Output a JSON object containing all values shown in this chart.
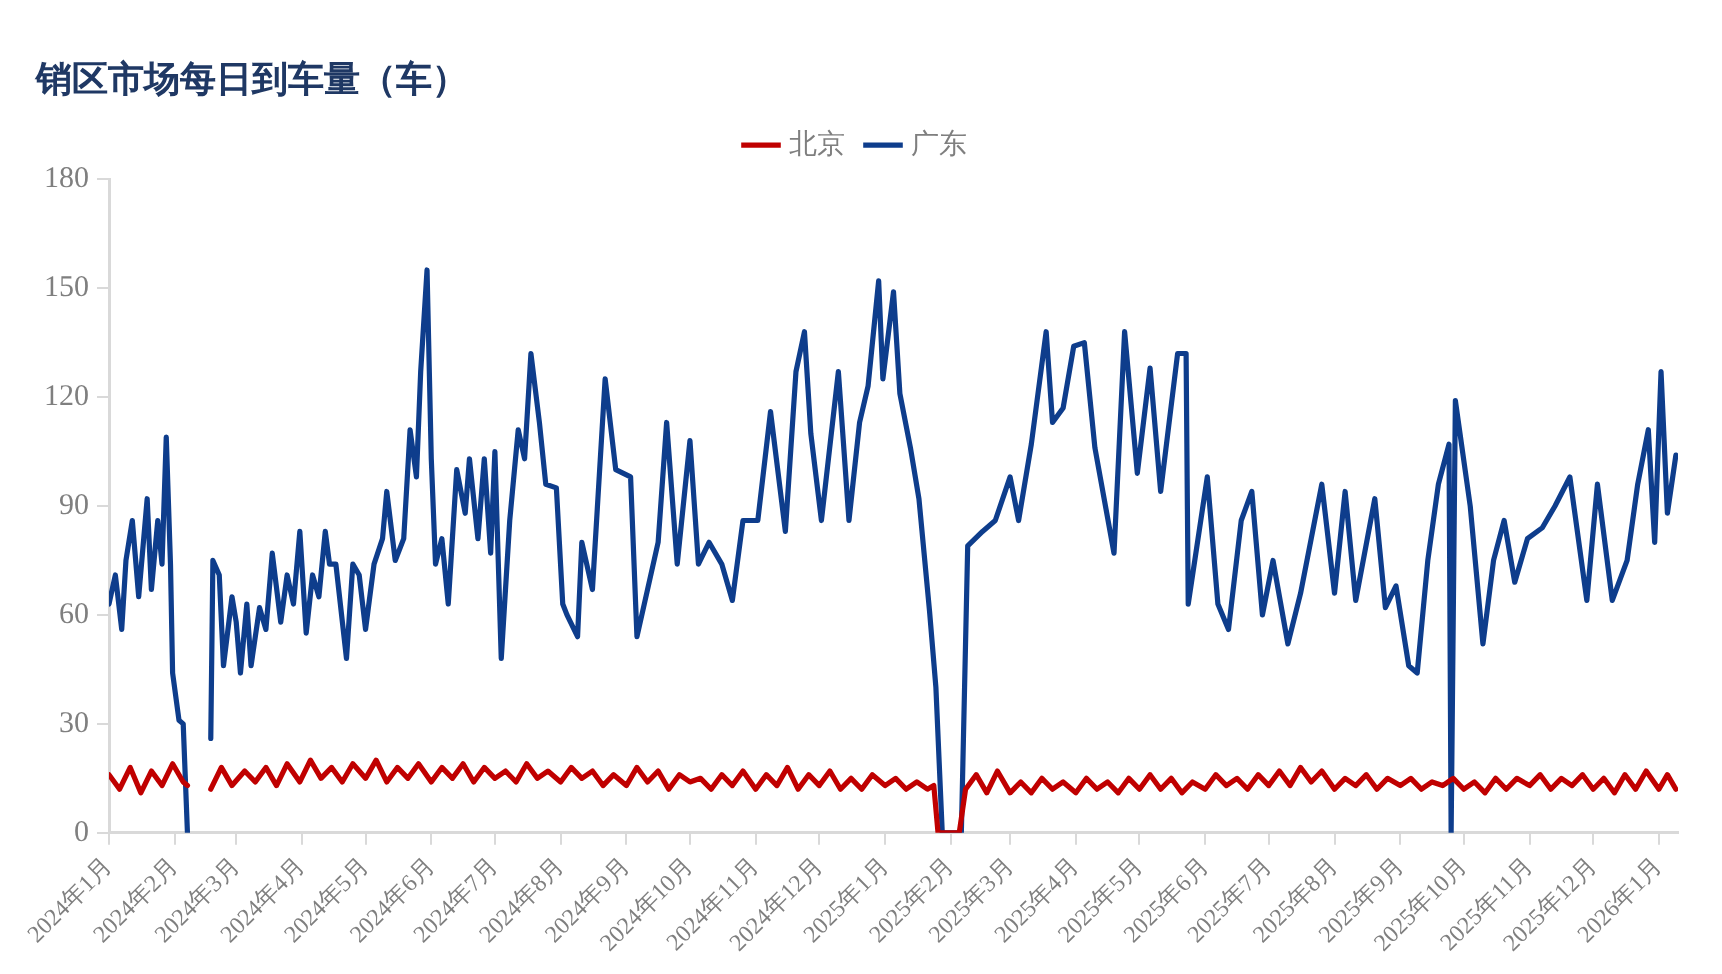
{
  "chart_data": {
    "type": "line",
    "title": "销区市场每日到车量（车）",
    "legend": "top",
    "marker": "none",
    "line_style": "solid",
    "grid": false,
    "xlim": [
      "2024-01-01",
      "2026-01-10"
    ],
    "ylim": [
      0,
      180
    ],
    "yticks": [
      0,
      30,
      60,
      90,
      120,
      150,
      180
    ],
    "xticks": [
      {
        "value": "2024-01-01",
        "label": "2024年1月"
      },
      {
        "value": "2024-02-01",
        "label": "2024年2月"
      },
      {
        "value": "2024-03-01",
        "label": "2024年3月"
      },
      {
        "value": "2024-04-01",
        "label": "2024年4月"
      },
      {
        "value": "2024-05-01",
        "label": "2024年5月"
      },
      {
        "value": "2024-06-01",
        "label": "2024年6月"
      },
      {
        "value": "2024-07-01",
        "label": "2024年7月"
      },
      {
        "value": "2024-08-01",
        "label": "2024年8月"
      },
      {
        "value": "2024-09-01",
        "label": "2024年9月"
      },
      {
        "value": "2024-10-01",
        "label": "2024年10月"
      },
      {
        "value": "2024-11-01",
        "label": "2024年11月"
      },
      {
        "value": "2024-12-01",
        "label": "2024年12月"
      },
      {
        "value": "2025-01-01",
        "label": "2025年1月"
      },
      {
        "value": "2025-02-01",
        "label": "2025年2月"
      },
      {
        "value": "2025-03-01",
        "label": "2025年3月"
      },
      {
        "value": "2025-04-01",
        "label": "2025年4月"
      },
      {
        "value": "2025-05-01",
        "label": "2025年5月"
      },
      {
        "value": "2025-06-01",
        "label": "2025年6月"
      },
      {
        "value": "2025-07-01",
        "label": "2025年7月"
      },
      {
        "value": "2025-08-01",
        "label": "2025年8月"
      },
      {
        "value": "2025-09-01",
        "label": "2025年9月"
      },
      {
        "value": "2025-10-01",
        "label": "2025年10月"
      },
      {
        "value": "2025-11-01",
        "label": "2025年11月"
      },
      {
        "value": "2025-12-01",
        "label": "2025年12月"
      },
      {
        "value": "2026-01-01",
        "label": "2026年1月"
      }
    ],
    "series": [
      {
        "name": "北京",
        "color": "#c00000",
        "x": [
          "2024-01-01",
          "2024-01-06",
          "2024-01-11",
          "2024-01-16",
          "2024-01-21",
          "2024-01-26",
          "2024-01-31",
          "2024-02-05",
          "2024-02-07",
          "2024-02-12",
          "2024-02-18",
          "2024-02-23",
          "2024-02-28",
          "2024-03-05",
          "2024-03-10",
          "2024-03-15",
          "2024-03-20",
          "2024-03-25",
          "2024-03-31",
          "2024-04-05",
          "2024-04-10",
          "2024-04-15",
          "2024-04-20",
          "2024-04-25",
          "2024-05-01",
          "2024-05-06",
          "2024-05-11",
          "2024-05-16",
          "2024-05-21",
          "2024-05-26",
          "2024-06-01",
          "2024-06-06",
          "2024-06-11",
          "2024-06-16",
          "2024-06-21",
          "2024-06-26",
          "2024-07-01",
          "2024-07-06",
          "2024-07-11",
          "2024-07-16",
          "2024-07-21",
          "2024-07-26",
          "2024-08-01",
          "2024-08-06",
          "2024-08-11",
          "2024-08-16",
          "2024-08-21",
          "2024-08-26",
          "2024-09-01",
          "2024-09-06",
          "2024-09-11",
          "2024-09-16",
          "2024-09-21",
          "2024-09-26",
          "2024-10-01",
          "2024-10-06",
          "2024-10-11",
          "2024-10-16",
          "2024-10-21",
          "2024-10-26",
          "2024-11-01",
          "2024-11-06",
          "2024-11-11",
          "2024-11-16",
          "2024-11-21",
          "2024-11-26",
          "2024-12-01",
          "2024-12-06",
          "2024-12-11",
          "2024-12-16",
          "2024-12-21",
          "2024-12-26",
          "2025-01-01",
          "2025-01-06",
          "2025-01-11",
          "2025-01-16",
          "2025-01-21",
          "2025-01-24",
          "2025-01-26",
          "2025-02-05",
          "2025-02-08",
          "2025-02-13",
          "2025-02-18",
          "2025-02-23",
          "2025-03-01",
          "2025-03-06",
          "2025-03-11",
          "2025-03-16",
          "2025-03-21",
          "2025-03-26",
          "2025-04-01",
          "2025-04-06",
          "2025-04-11",
          "2025-04-16",
          "2025-04-21",
          "2025-04-26",
          "2025-05-01",
          "2025-05-06",
          "2025-05-11",
          "2025-05-16",
          "2025-05-21",
          "2025-05-26",
          "2025-06-01",
          "2025-06-06",
          "2025-06-11",
          "2025-06-16",
          "2025-06-21",
          "2025-06-26",
          "2025-07-01",
          "2025-07-06",
          "2025-07-11",
          "2025-07-16",
          "2025-07-21",
          "2025-07-26",
          "2025-08-01",
          "2025-08-06",
          "2025-08-11",
          "2025-08-16",
          "2025-08-21",
          "2025-08-26",
          "2025-09-01",
          "2025-09-06",
          "2025-09-11",
          "2025-09-16",
          "2025-09-21",
          "2025-09-26",
          "2025-10-01",
          "2025-10-06",
          "2025-10-11",
          "2025-10-16",
          "2025-10-21",
          "2025-10-26",
          "2025-11-01",
          "2025-11-06",
          "2025-11-11",
          "2025-11-16",
          "2025-11-21",
          "2025-11-26",
          "2025-12-01",
          "2025-12-06",
          "2025-12-11",
          "2025-12-16",
          "2025-12-21",
          "2025-12-26",
          "2026-01-01",
          "2026-01-05",
          "2026-01-09"
        ],
        "values": [
          16,
          12,
          18,
          11,
          17,
          13,
          19,
          14,
          13,
          null,
          12,
          18,
          13,
          17,
          14,
          18,
          13,
          19,
          14,
          20,
          15,
          18,
          14,
          19,
          15,
          20,
          14,
          18,
          15,
          19,
          14,
          18,
          15,
          19,
          14,
          18,
          15,
          17,
          14,
          19,
          15,
          17,
          14,
          18,
          15,
          17,
          13,
          16,
          13,
          18,
          14,
          17,
          12,
          16,
          14,
          15,
          12,
          16,
          13,
          17,
          12,
          16,
          13,
          18,
          12,
          16,
          13,
          17,
          12,
          15,
          12,
          16,
          13,
          15,
          12,
          14,
          12,
          13,
          0,
          0,
          12,
          16,
          11,
          17,
          11,
          14,
          11,
          15,
          12,
          14,
          11,
          15,
          12,
          14,
          11,
          15,
          12,
          16,
          12,
          15,
          11,
          14,
          12,
          16,
          13,
          15,
          12,
          16,
          13,
          17,
          13,
          18,
          14,
          17,
          12,
          15,
          13,
          16,
          12,
          15,
          13,
          15,
          12,
          14,
          13,
          15,
          12,
          14,
          11,
          15,
          12,
          15,
          13,
          16,
          12,
          15,
          13,
          16,
          12,
          15,
          11,
          16,
          12,
          17,
          12,
          16,
          12
        ]
      },
      {
        "name": "广东",
        "color": "#0e3d8c",
        "x": [
          "2024-01-01",
          "2024-01-04",
          "2024-01-07",
          "2024-01-09",
          "2024-01-12",
          "2024-01-15",
          "2024-01-19",
          "2024-01-21",
          "2024-01-24",
          "2024-01-26",
          "2024-01-28",
          "2024-01-30",
          "2024-01-31",
          "2024-02-03",
          "2024-02-05",
          "2024-02-07",
          "2024-02-12",
          "2024-02-18",
          "2024-02-19",
          "2024-02-22",
          "2024-02-24",
          "2024-02-28",
          "2024-03-01",
          "2024-03-03",
          "2024-03-06",
          "2024-03-08",
          "2024-03-12",
          "2024-03-15",
          "2024-03-18",
          "2024-03-22",
          "2024-03-25",
          "2024-03-28",
          "2024-03-31",
          "2024-04-03",
          "2024-04-06",
          "2024-04-09",
          "2024-04-12",
          "2024-04-14",
          "2024-04-17",
          "2024-04-22",
          "2024-04-25",
          "2024-04-28",
          "2024-05-01",
          "2024-05-05",
          "2024-05-09",
          "2024-05-11",
          "2024-05-15",
          "2024-05-19",
          "2024-05-22",
          "2024-05-25",
          "2024-05-27",
          "2024-05-30",
          "2024-06-01",
          "2024-06-03",
          "2024-06-06",
          "2024-06-09",
          "2024-06-13",
          "2024-06-17",
          "2024-06-19",
          "2024-06-23",
          "2024-06-26",
          "2024-06-29",
          "2024-07-01",
          "2024-07-04",
          "2024-07-08",
          "2024-07-12",
          "2024-07-15",
          "2024-07-18",
          "2024-07-22",
          "2024-07-25",
          "2024-07-30",
          "2024-08-02",
          "2024-08-04",
          "2024-08-09",
          "2024-08-11",
          "2024-08-16",
          "2024-08-22",
          "2024-08-27",
          "2024-09-03",
          "2024-09-06",
          "2024-09-11",
          "2024-09-16",
          "2024-09-20",
          "2024-09-25",
          "2024-10-01",
          "2024-10-05",
          "2024-10-10",
          "2024-10-16",
          "2024-10-21",
          "2024-10-26",
          "2024-11-02",
          "2024-11-08",
          "2024-11-15",
          "2024-11-20",
          "2024-11-24",
          "2024-11-27",
          "2024-12-02",
          "2024-12-10",
          "2024-12-15",
          "2024-12-20",
          "2024-12-24",
          "2024-12-29",
          "2024-12-31",
          "2025-01-05",
          "2025-01-08",
          "2025-01-13",
          "2025-01-17",
          "2025-01-22",
          "2025-01-25",
          "2025-01-28",
          "2025-02-06",
          "2025-02-09",
          "2025-02-16",
          "2025-02-22",
          "2025-03-01",
          "2025-03-05",
          "2025-03-11",
          "2025-03-18",
          "2025-03-21",
          "2025-03-26",
          "2025-03-31",
          "2025-04-05",
          "2025-04-10",
          "2025-04-19",
          "2025-04-24",
          "2025-04-30",
          "2025-05-06",
          "2025-05-11",
          "2025-05-19",
          "2025-05-23",
          "2025-05-24",
          "2025-06-02",
          "2025-06-07",
          "2025-06-12",
          "2025-06-18",
          "2025-06-23",
          "2025-06-28",
          "2025-07-03",
          "2025-07-10",
          "2025-07-16",
          "2025-07-21",
          "2025-07-26",
          "2025-08-01",
          "2025-08-06",
          "2025-08-11",
          "2025-08-20",
          "2025-08-25",
          "2025-08-30",
          "2025-09-05",
          "2025-09-09",
          "2025-09-14",
          "2025-09-19",
          "2025-09-24",
          "2025-09-25",
          "2025-09-27",
          "2025-10-04",
          "2025-10-10",
          "2025-10-15",
          "2025-10-20",
          "2025-10-25",
          "2025-10-31",
          "2025-11-07",
          "2025-11-13",
          "2025-11-20",
          "2025-11-28",
          "2025-12-03",
          "2025-12-10",
          "2025-12-17",
          "2025-12-22",
          "2025-12-27",
          "2025-12-30",
          "2026-01-02",
          "2026-01-05",
          "2026-01-09"
        ],
        "values": [
          63,
          71,
          56,
          75,
          86,
          65,
          92,
          67,
          86,
          74,
          109,
          74,
          44,
          31,
          30,
          0,
          null,
          26,
          75,
          71,
          46,
          65,
          58,
          44,
          63,
          46,
          62,
          56,
          77,
          58,
          71,
          63,
          83,
          55,
          71,
          65,
          83,
          74,
          74,
          48,
          74,
          71,
          56,
          74,
          81,
          94,
          75,
          81,
          111,
          98,
          127,
          155,
          103,
          74,
          81,
          63,
          100,
          88,
          103,
          81,
          103,
          77,
          105,
          48,
          86,
          111,
          103,
          132,
          113,
          96,
          95,
          63,
          60,
          54,
          80,
          67,
          125,
          100,
          98,
          54,
          67,
          80,
          113,
          74,
          108,
          74,
          80,
          74,
          64,
          86,
          86,
          116,
          83,
          127,
          138,
          110,
          86,
          127,
          86,
          113,
          123,
          152,
          125,
          149,
          121,
          106,
          92,
          61,
          40,
          0,
          0,
          79,
          83,
          86,
          98,
          86,
          107,
          138,
          113,
          117,
          134,
          135,
          106,
          77,
          138,
          99,
          128,
          94,
          132,
          132,
          63,
          98,
          63,
          56,
          86,
          94,
          60,
          75,
          52,
          66,
          81,
          96,
          66,
          94,
          64,
          92,
          62,
          68,
          46,
          44,
          75,
          96,
          107,
          0,
          119,
          90,
          52,
          75,
          86,
          69,
          81,
          84,
          90,
          98,
          64,
          96,
          64,
          75,
          96,
          111,
          80,
          127,
          88,
          104
        ]
      }
    ]
  }
}
